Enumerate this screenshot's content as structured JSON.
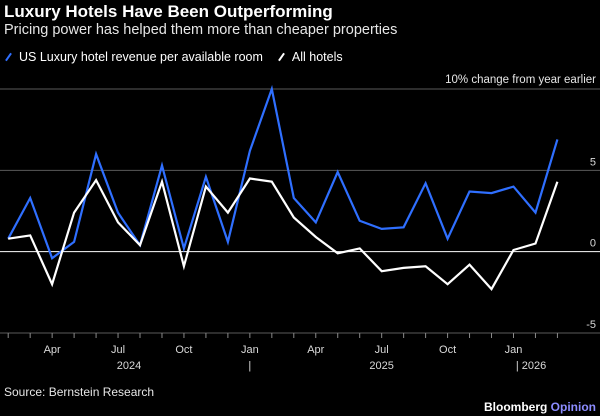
{
  "chart_data": {
    "type": "line",
    "title": "Luxury Hotels Have Been Outperforming",
    "subtitle": "Pricing power has helped them more than cheaper properties",
    "unit_label": "10% change from year earlier",
    "ylim": [
      -5,
      10
    ],
    "yticks": [
      {
        "value": 5,
        "label": "5"
      },
      {
        "value": 0,
        "label": "0"
      },
      {
        "value": -5,
        "label": "-5"
      }
    ],
    "gridlines": [
      10,
      5,
      -5
    ],
    "x": [
      0,
      1,
      2,
      3,
      4,
      5,
      6,
      7,
      8,
      9,
      10,
      11,
      12,
      13,
      14,
      15,
      16,
      17,
      18,
      19,
      20,
      21,
      22,
      23,
      24,
      25
    ],
    "xlim": [
      -0.1,
      25.8
    ],
    "xticks": [
      {
        "pos": 2,
        "label": "Apr"
      },
      {
        "pos": 5,
        "label": "Jul"
      },
      {
        "pos": 8,
        "label": "Oct"
      },
      {
        "pos": 11,
        "label": "Jan"
      },
      {
        "pos": 14,
        "label": "Apr"
      },
      {
        "pos": 17,
        "label": "Jul"
      },
      {
        "pos": 20,
        "label": "Oct"
      },
      {
        "pos": 23,
        "label": "Jan"
      }
    ],
    "year_labels": [
      {
        "pos": 5.5,
        "label": "2024"
      },
      {
        "pos": 11,
        "label": "|"
      },
      {
        "pos": 17,
        "label": "2025"
      },
      {
        "pos": 23.8,
        "label": "| 2026"
      }
    ],
    "series": [
      {
        "name": "US Luxury hotel revenue per available room",
        "color": "#2f6fff",
        "values": [
          0.8,
          3.3,
          -0.4,
          0.6,
          6.0,
          2.4,
          0.4,
          5.3,
          0.2,
          4.6,
          0.6,
          6.2,
          10.0,
          3.3,
          1.8,
          4.9,
          1.9,
          1.4,
          1.5,
          4.2,
          0.8,
          3.7,
          3.6,
          4.0,
          2.4,
          6.9
        ]
      },
      {
        "name": "All hotels",
        "color": "#ffffff",
        "values": [
          0.8,
          1.0,
          -2.0,
          2.4,
          4.4,
          1.8,
          0.4,
          4.3,
          -0.9,
          4.0,
          2.4,
          4.5,
          4.3,
          2.1,
          0.9,
          -0.1,
          0.2,
          -1.2,
          -1.0,
          -0.9,
          -2.0,
          -0.8,
          -2.3,
          0.1,
          0.5,
          4.3
        ]
      }
    ]
  },
  "legend": {
    "items": [
      {
        "label": "US Luxury hotel revenue per available room",
        "color": "#2f6fff"
      },
      {
        "label": "All hotels",
        "color": "#ffffff"
      }
    ]
  },
  "footer": {
    "source": "Source: Bernstein Research",
    "brand": "Bloomberg",
    "brand_suffix": "Opinion"
  }
}
